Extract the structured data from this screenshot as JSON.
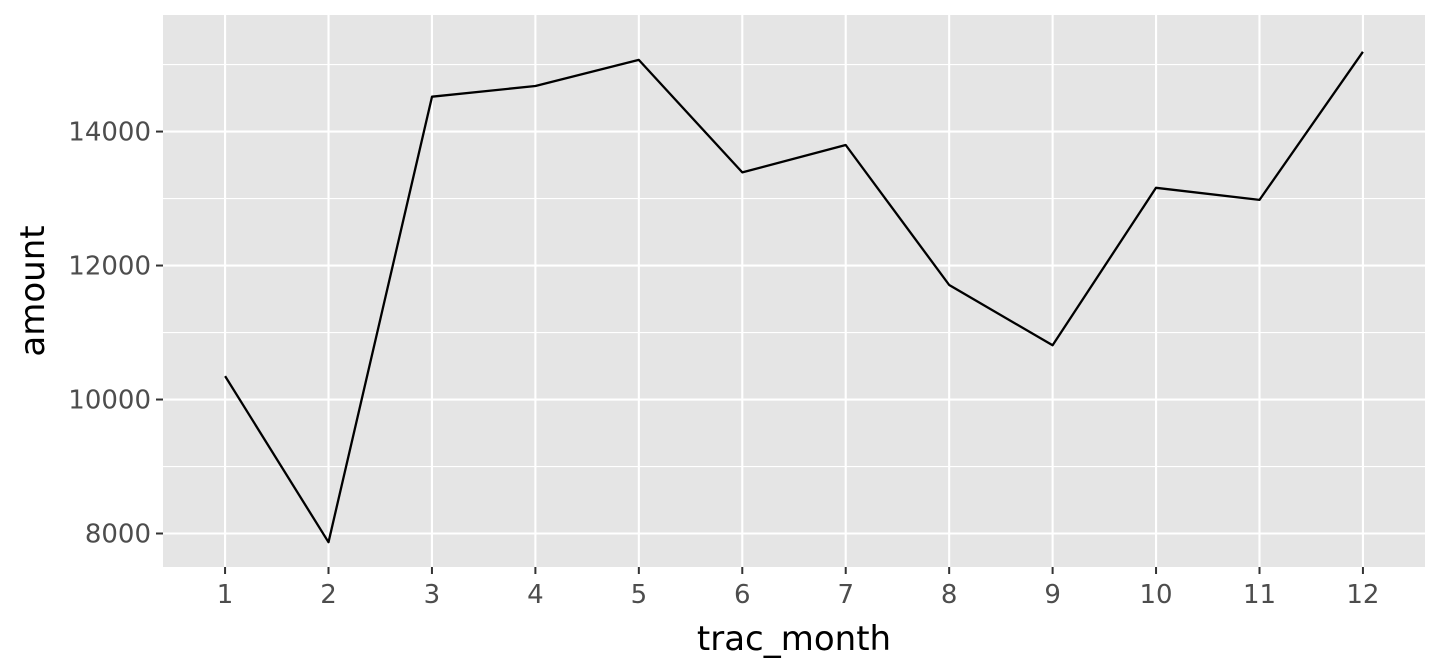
{
  "chart_data": {
    "type": "line",
    "title": "",
    "xlabel": "trac_month",
    "ylabel": "amount",
    "x": [
      1,
      2,
      3,
      4,
      5,
      6,
      7,
      8,
      9,
      10,
      11,
      12
    ],
    "series": [
      {
        "values": [
          10350,
          7870,
          14520,
          14680,
          15070,
          13390,
          13800,
          11710,
          10810,
          13160,
          12980,
          15190
        ]
      }
    ],
    "x_ticks": [
      "1",
      "2",
      "3",
      "4",
      "5",
      "6",
      "7",
      "8",
      "9",
      "10",
      "11",
      "12"
    ],
    "y_ticks": [
      "8000",
      "10000",
      "12000",
      "14000"
    ],
    "y_tick_values": [
      8000,
      10000,
      12000,
      14000
    ],
    "xlim": [
      0.4,
      12.6
    ],
    "ylim": [
      7500,
      15740
    ],
    "grid": true,
    "legend": "none",
    "colors": {
      "panel_background": "#e5e5e5",
      "grid": "#ffffff",
      "line": "#000000",
      "tick_text": "#4d4d4d",
      "axis_title": "#000000"
    }
  }
}
